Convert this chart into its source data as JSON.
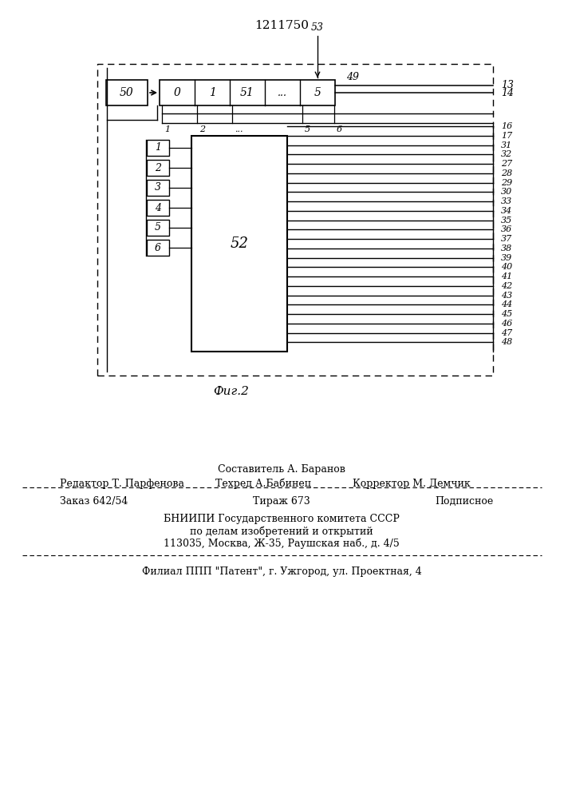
{
  "title": "1211750",
  "background_color": "#ffffff",
  "text_color": "#000000",
  "output_labels": [
    "16",
    "17",
    "31",
    "32",
    "27",
    "28",
    "29",
    "30",
    "33",
    "34",
    "35",
    "36",
    "37",
    "38",
    "39",
    "40",
    "41",
    "42",
    "43",
    "44",
    "45",
    "46",
    "47",
    "48"
  ],
  "input_labels": [
    "1",
    "2",
    "3",
    "4",
    "5",
    "6"
  ],
  "counter_label": "50",
  "block_label": "52",
  "label_49": "49",
  "label_13": "13",
  "label_14": "14",
  "label_53": "53",
  "fig_label": "Фиг.2"
}
